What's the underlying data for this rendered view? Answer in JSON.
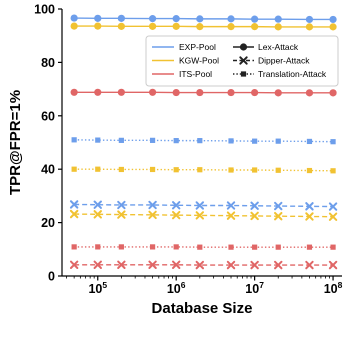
{
  "chart_data": {
    "type": "line",
    "xlabel": "Database Size",
    "ylabel": "TPR@FPR=1%",
    "xscale": "log",
    "xlim": [
      35000.0,
      130000000.0
    ],
    "ylim": [
      0,
      100
    ],
    "yticks": [
      0,
      20,
      40,
      60,
      80,
      100
    ],
    "xticks": [
      {
        "value": 100000.0,
        "base": "10",
        "exp": "5"
      },
      {
        "value": 1000000.0,
        "base": "10",
        "exp": "6"
      },
      {
        "value": 10000000.0,
        "base": "10",
        "exp": "7"
      },
      {
        "value": 100000000.0,
        "base": "10",
        "exp": "8"
      }
    ],
    "x": [
      50000,
      100000,
      200000,
      500000,
      1000000,
      2000000,
      5000000,
      10000000,
      20000000,
      50000000,
      100000000
    ],
    "grid": false,
    "legend_position": "top-right",
    "legend": {
      "methods": [
        {
          "label": "EXP-Pool",
          "color": "#6d9eeb"
        },
        {
          "label": "KGW-Pool",
          "color": "#f1c232"
        },
        {
          "label": "ITS-Pool",
          "color": "#e06666"
        }
      ],
      "attacks": [
        {
          "label": "Lex-Attack",
          "marker": "circle",
          "dash": "solid"
        },
        {
          "label": "Dipper-Attack",
          "marker": "x",
          "dash": "dashed"
        },
        {
          "label": "Translation-Attack",
          "marker": "square",
          "dash": "dotted"
        }
      ]
    },
    "series": [
      {
        "method": "EXP-Pool",
        "attack": "Lex-Attack",
        "color": "#6d9eeb",
        "marker": "circle",
        "dash": "solid",
        "values": [
          96.6,
          96.5,
          96.5,
          96.4,
          96.4,
          96.3,
          96.3,
          96.2,
          96.2,
          96.1,
          96.1
        ]
      },
      {
        "method": "KGW-Pool",
        "attack": "Lex-Attack",
        "color": "#f1c232",
        "marker": "circle",
        "dash": "solid",
        "values": [
          93.6,
          93.6,
          93.5,
          93.5,
          93.5,
          93.4,
          93.4,
          93.4,
          93.3,
          93.3,
          93.3
        ]
      },
      {
        "method": "ITS-Pool",
        "attack": "Lex-Attack",
        "color": "#e06666",
        "marker": "circle",
        "dash": "solid",
        "values": [
          68.8,
          68.8,
          68.8,
          68.8,
          68.7,
          68.7,
          68.7,
          68.7,
          68.6,
          68.6,
          68.6
        ]
      },
      {
        "method": "EXP-Pool",
        "attack": "Translation-Attack",
        "color": "#6d9eeb",
        "marker": "square",
        "dash": "dotted",
        "values": [
          51.0,
          50.9,
          50.8,
          50.8,
          50.7,
          50.7,
          50.6,
          50.5,
          50.5,
          50.4,
          50.3
        ]
      },
      {
        "method": "KGW-Pool",
        "attack": "Translation-Attack",
        "color": "#f1c232",
        "marker": "square",
        "dash": "dotted",
        "values": [
          40.0,
          40.0,
          39.9,
          39.9,
          39.8,
          39.8,
          39.7,
          39.7,
          39.6,
          39.5,
          39.4
        ]
      },
      {
        "method": "EXP-Pool",
        "attack": "Dipper-Attack",
        "color": "#6d9eeb",
        "marker": "x",
        "dash": "dashed",
        "values": [
          26.8,
          26.7,
          26.6,
          26.6,
          26.5,
          26.4,
          26.4,
          26.3,
          26.2,
          26.1,
          26.0
        ]
      },
      {
        "method": "KGW-Pool",
        "attack": "Dipper-Attack",
        "color": "#f1c232",
        "marker": "x",
        "dash": "dashed",
        "values": [
          23.2,
          23.1,
          23.0,
          22.9,
          22.8,
          22.7,
          22.6,
          22.5,
          22.4,
          22.3,
          22.2
        ]
      },
      {
        "method": "ITS-Pool",
        "attack": "Translation-Attack",
        "color": "#e06666",
        "marker": "square",
        "dash": "dotted",
        "values": [
          10.9,
          10.9,
          10.9,
          10.9,
          10.9,
          10.8,
          10.8,
          10.8,
          10.8,
          10.8,
          10.8
        ]
      },
      {
        "method": "ITS-Pool",
        "attack": "Dipper-Attack",
        "color": "#e06666",
        "marker": "x",
        "dash": "dashed",
        "values": [
          4.2,
          4.2,
          4.2,
          4.2,
          4.2,
          4.1,
          4.1,
          4.1,
          4.1,
          4.1,
          4.1
        ]
      }
    ]
  }
}
